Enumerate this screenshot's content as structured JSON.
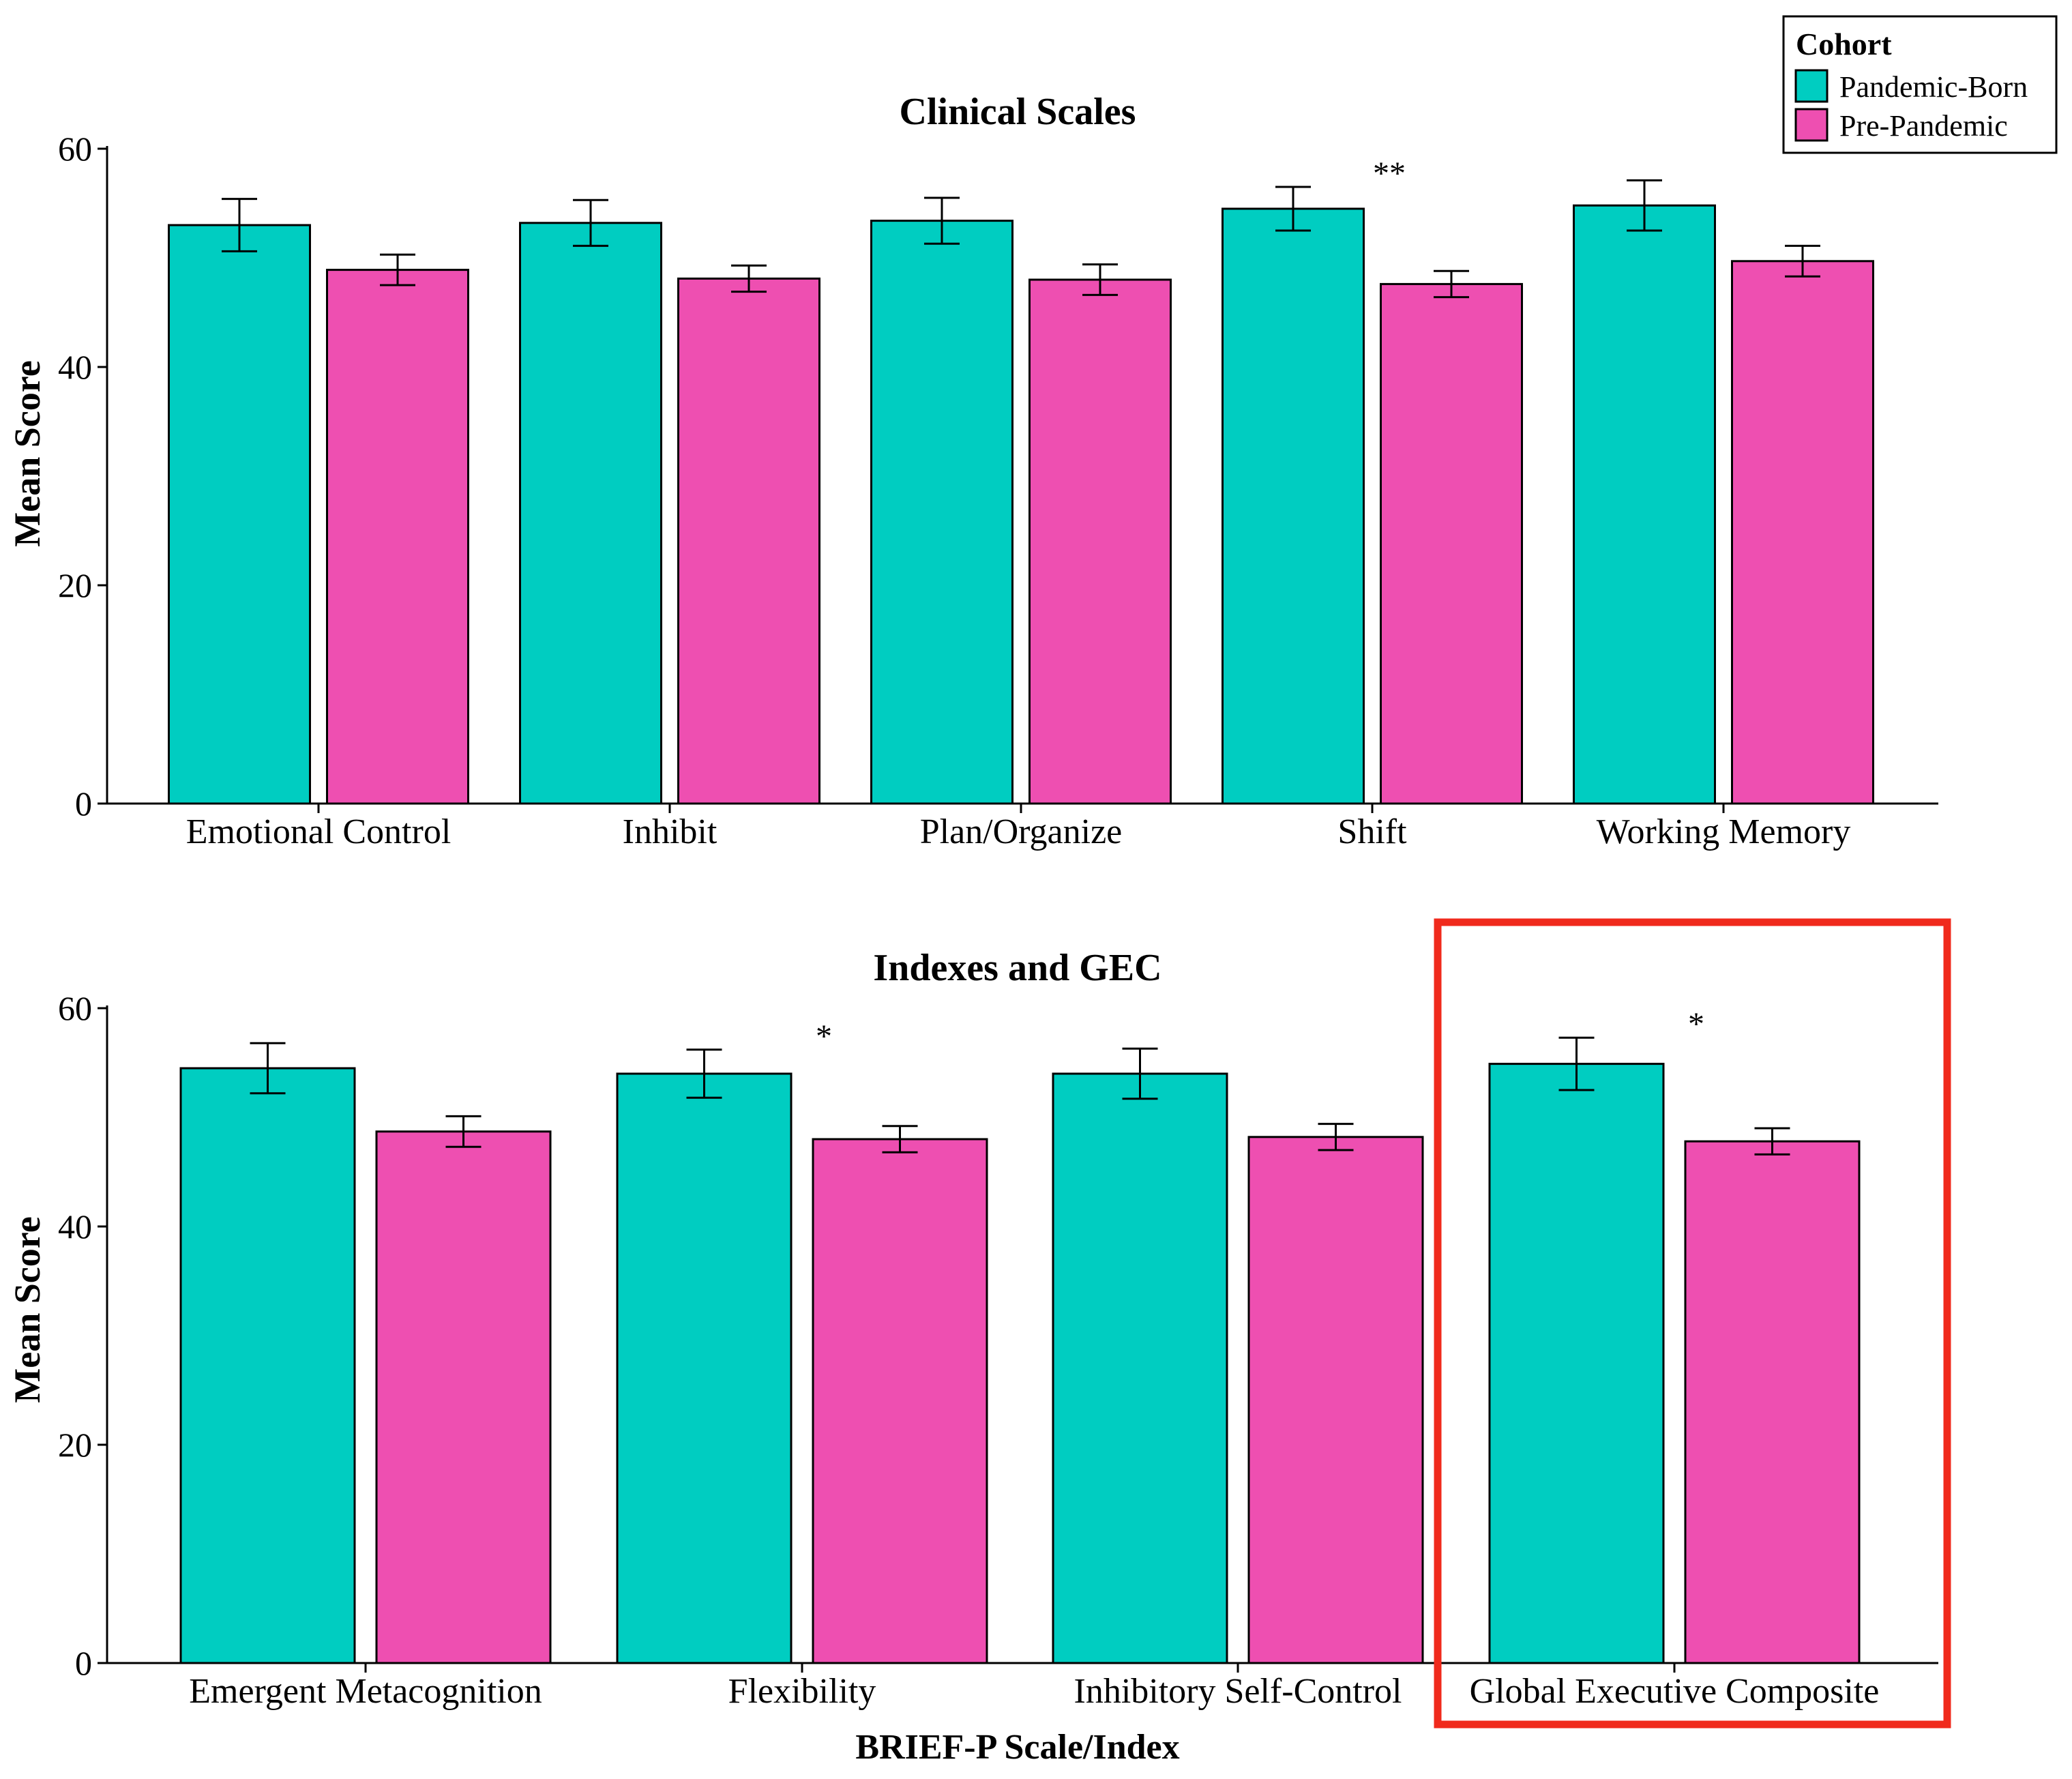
{
  "chart_data": [
    {
      "type": "bar",
      "title": "Clinical Scales",
      "xlabel": "",
      "ylabel": "Mean Score",
      "ylim": [
        0,
        60
      ],
      "yticks": [
        0,
        20,
        40,
        60
      ],
      "categories": [
        "Emotional Control",
        "Inhibit",
        "Plan/Organize",
        "Shift",
        "Working Memory"
      ],
      "series": [
        {
          "name": "Pandemic-Born",
          "color": "#00CDC1",
          "values": [
            53.0,
            53.2,
            53.4,
            54.5,
            54.8
          ],
          "errors": [
            2.4,
            2.1,
            2.1,
            2.0,
            2.3
          ]
        },
        {
          "name": "Pre-Pandemic",
          "color": "#EE4FB1",
          "values": [
            48.9,
            48.1,
            48.0,
            47.6,
            49.7
          ],
          "errors": [
            1.4,
            1.2,
            1.4,
            1.2,
            1.4
          ]
        }
      ],
      "significance": [
        "",
        "",
        "",
        "**",
        ""
      ]
    },
    {
      "type": "bar",
      "title": "Indexes and GEC",
      "xlabel": "BRIEF-P Scale/Index",
      "ylabel": "Mean Score",
      "ylim": [
        0,
        60
      ],
      "yticks": [
        0,
        20,
        40,
        60
      ],
      "categories": [
        "Emergent Metacognition",
        "Flexibility",
        "Inhibitory Self-Control",
        "Global Executive Composite"
      ],
      "series": [
        {
          "name": "Pandemic-Born",
          "color": "#00CDC1",
          "values": [
            54.5,
            54.0,
            54.0,
            54.9
          ],
          "errors": [
            2.3,
            2.2,
            2.3,
            2.4
          ]
        },
        {
          "name": "Pre-Pandemic",
          "color": "#EE4FB1",
          "values": [
            48.7,
            48.0,
            48.2,
            47.8
          ],
          "errors": [
            1.4,
            1.2,
            1.2,
            1.2
          ]
        }
      ],
      "significance": [
        "",
        "*",
        "",
        "*"
      ],
      "highlight_category": "Global Executive Composite",
      "highlight_color": "#F02A1C"
    }
  ],
  "legend": {
    "title": "Cohort",
    "items": [
      {
        "label": "Pandemic-Born",
        "color": "#00CDC1"
      },
      {
        "label": "Pre-Pandemic",
        "color": "#EE4FB1"
      }
    ]
  }
}
